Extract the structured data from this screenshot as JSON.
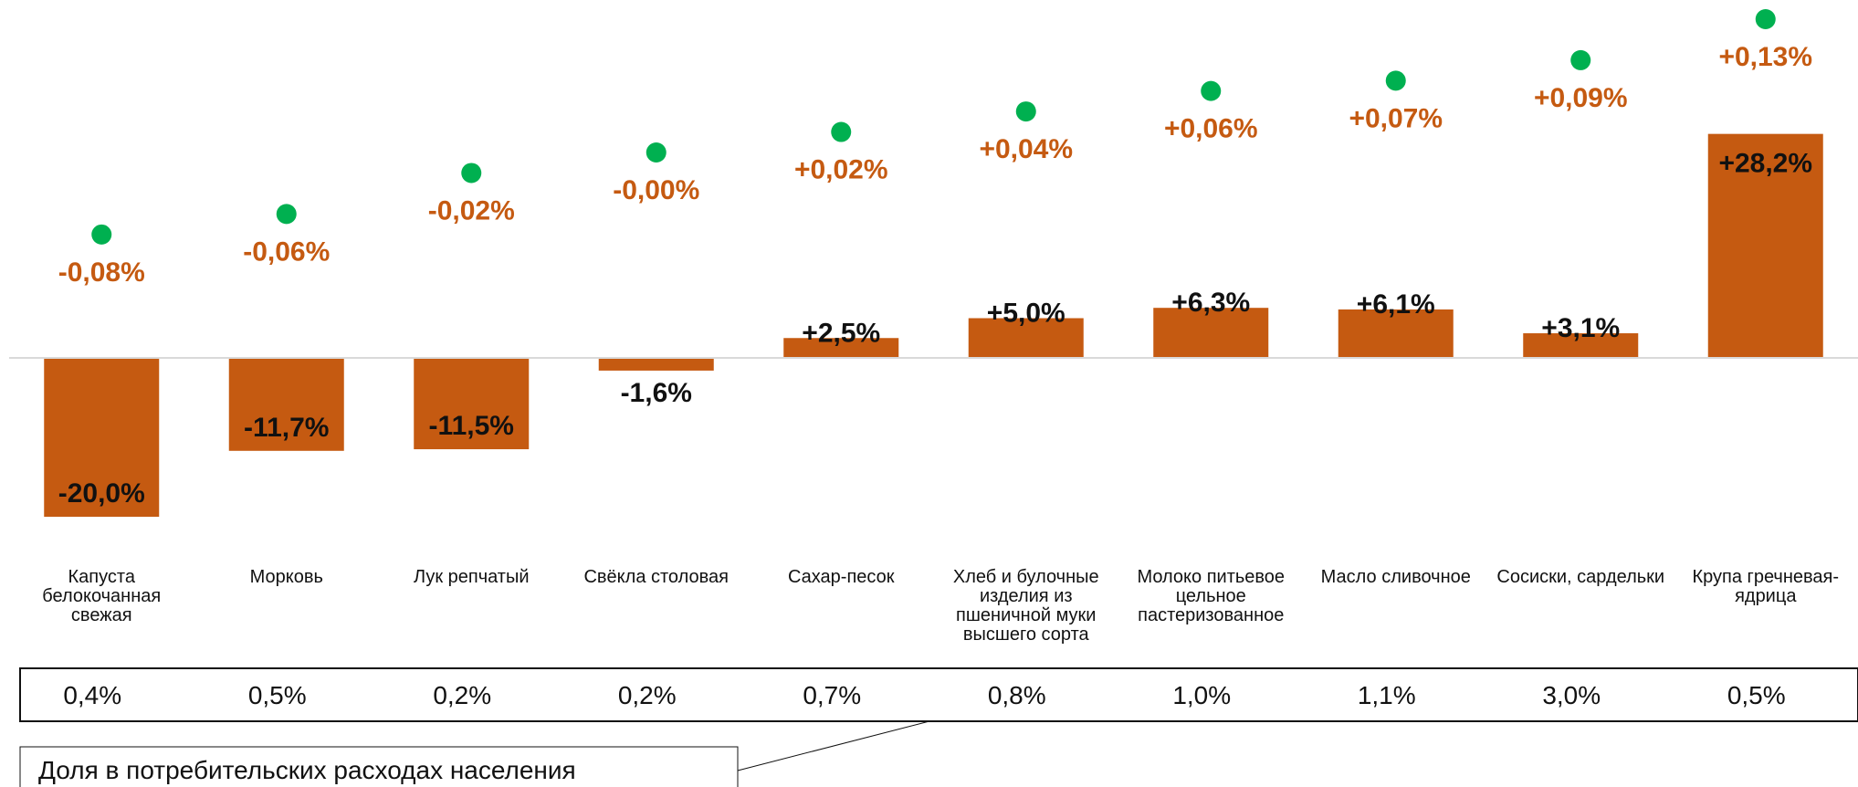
{
  "chart_data": {
    "type": "bar",
    "categories": [
      [
        "Капуста",
        "белокочанная",
        "свежая"
      ],
      [
        "Морковь"
      ],
      [
        "Лук репчатый"
      ],
      [
        "Свёкла столовая"
      ],
      [
        "Сахар-песок"
      ],
      [
        "Хлеб и булочные",
        "изделия из",
        "пшеничной муки",
        "высшего сорта"
      ],
      [
        "Молоко питьевое",
        "цельное",
        "пастеризованное"
      ],
      [
        "Масло сливочное"
      ],
      [
        "Сосиски, сардельки"
      ],
      [
        "Крупа гречневая-",
        "ядрица"
      ]
    ],
    "values": [
      -20.0,
      -11.7,
      -11.5,
      -1.6,
      2.5,
      5.0,
      6.3,
      6.1,
      3.1,
      28.2
    ],
    "value_labels": [
      "-20,0%",
      "-11,7%",
      "-11,5%",
      "-1,6%",
      "+2,5%",
      "+5,0%",
      "+6,3%",
      "+6,1%",
      "+3,1%",
      "+28,2%"
    ],
    "contributions": [
      -0.08,
      -0.06,
      -0.02,
      -0.0,
      0.02,
      0.04,
      0.06,
      0.07,
      0.09,
      0.13
    ],
    "contribution_labels": [
      "-0,08%",
      "-0,06%",
      "-0,02%",
      "-0,00%",
      "+0,02%",
      "+0,04%",
      "+0,06%",
      "+0,07%",
      "+0,09%",
      "+0,13%"
    ],
    "shares": [
      "0,4%",
      "0,5%",
      "0,2%",
      "0,2%",
      "0,7%",
      "0,8%",
      "1,0%",
      "1,1%",
      "3,0%",
      "0,5%"
    ],
    "share_note": "Доля в потребительских расходах населения",
    "ylim": [
      -28.2,
      28.2
    ],
    "contribution_range": [
      -0.13,
      0.13
    ],
    "grid": false,
    "colors": {
      "bar": "#c55a11",
      "dot": "#00b050",
      "contribution_text": "#c55a11",
      "axis": "#d9d9d9"
    }
  }
}
